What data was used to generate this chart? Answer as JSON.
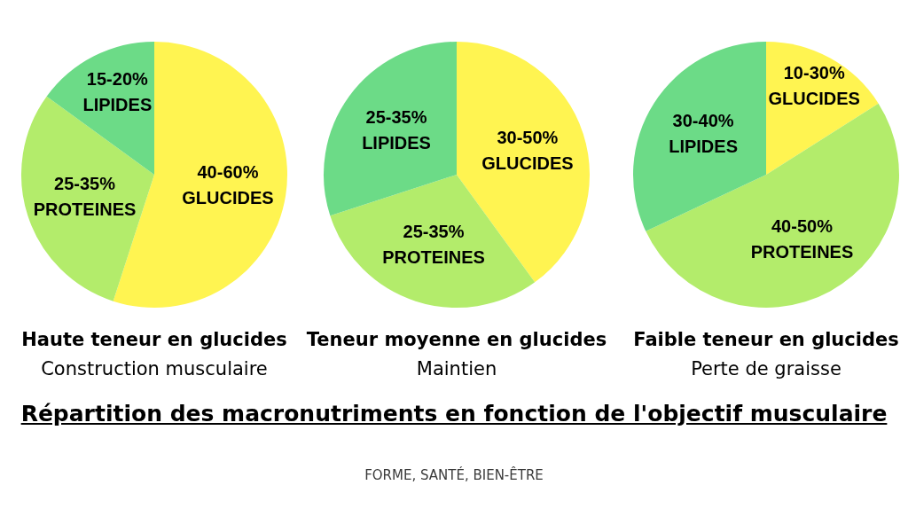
{
  "chart_data": [
    {
      "type": "pie",
      "title": "Haute teneur en glucides",
      "subtitle": "Construction musculaire",
      "categories": [
        "GLUCIDES",
        "PROTEINES",
        "LIPIDES"
      ],
      "values": [
        55,
        30,
        15
      ],
      "colors": [
        "#fff451",
        "#b3ec6b",
        "#6cdb87"
      ],
      "annotations": [
        {
          "text": "40-60%",
          "x": "GLUCIDES"
        },
        {
          "text": "25-35%",
          "x": "PROTEINES"
        },
        {
          "text": "15-20%",
          "x": "LIPIDES"
        }
      ]
    },
    {
      "type": "pie",
      "title": "Teneur moyenne en glucides",
      "subtitle": "Maintien",
      "categories": [
        "GLUCIDES",
        "PROTEINES",
        "LIPIDES"
      ],
      "values": [
        40,
        30,
        30
      ],
      "colors": [
        "#fff451",
        "#b3ec6b",
        "#6cdb87"
      ],
      "annotations": [
        {
          "text": "30-50%",
          "x": "GLUCIDES"
        },
        {
          "text": "25-35%",
          "x": "PROTEINES"
        },
        {
          "text": "25-35%",
          "x": "LIPIDES"
        }
      ]
    },
    {
      "type": "pie",
      "title": "Faible teneur en glucides",
      "subtitle": "Perte de graisse",
      "categories": [
        "GLUCIDES",
        "PROTEINES",
        "LIPIDES"
      ],
      "values": [
        16,
        52,
        32
      ],
      "colors": [
        "#fff451",
        "#b3ec6b",
        "#6cdb87"
      ],
      "annotations": [
        {
          "text": "10-30%",
          "x": "GLUCIDES"
        },
        {
          "text": "40-50%",
          "x": "PROTEINES"
        },
        {
          "text": "30-40%",
          "x": "LIPIDES"
        }
      ]
    },
    {
      "type": "other",
      "title": "Répartition des macronutriments en fonction de l'objectif musculaire",
      "annotations": [
        "FORME, SANTÉ, BIEN-ÊTRE"
      ]
    }
  ]
}
